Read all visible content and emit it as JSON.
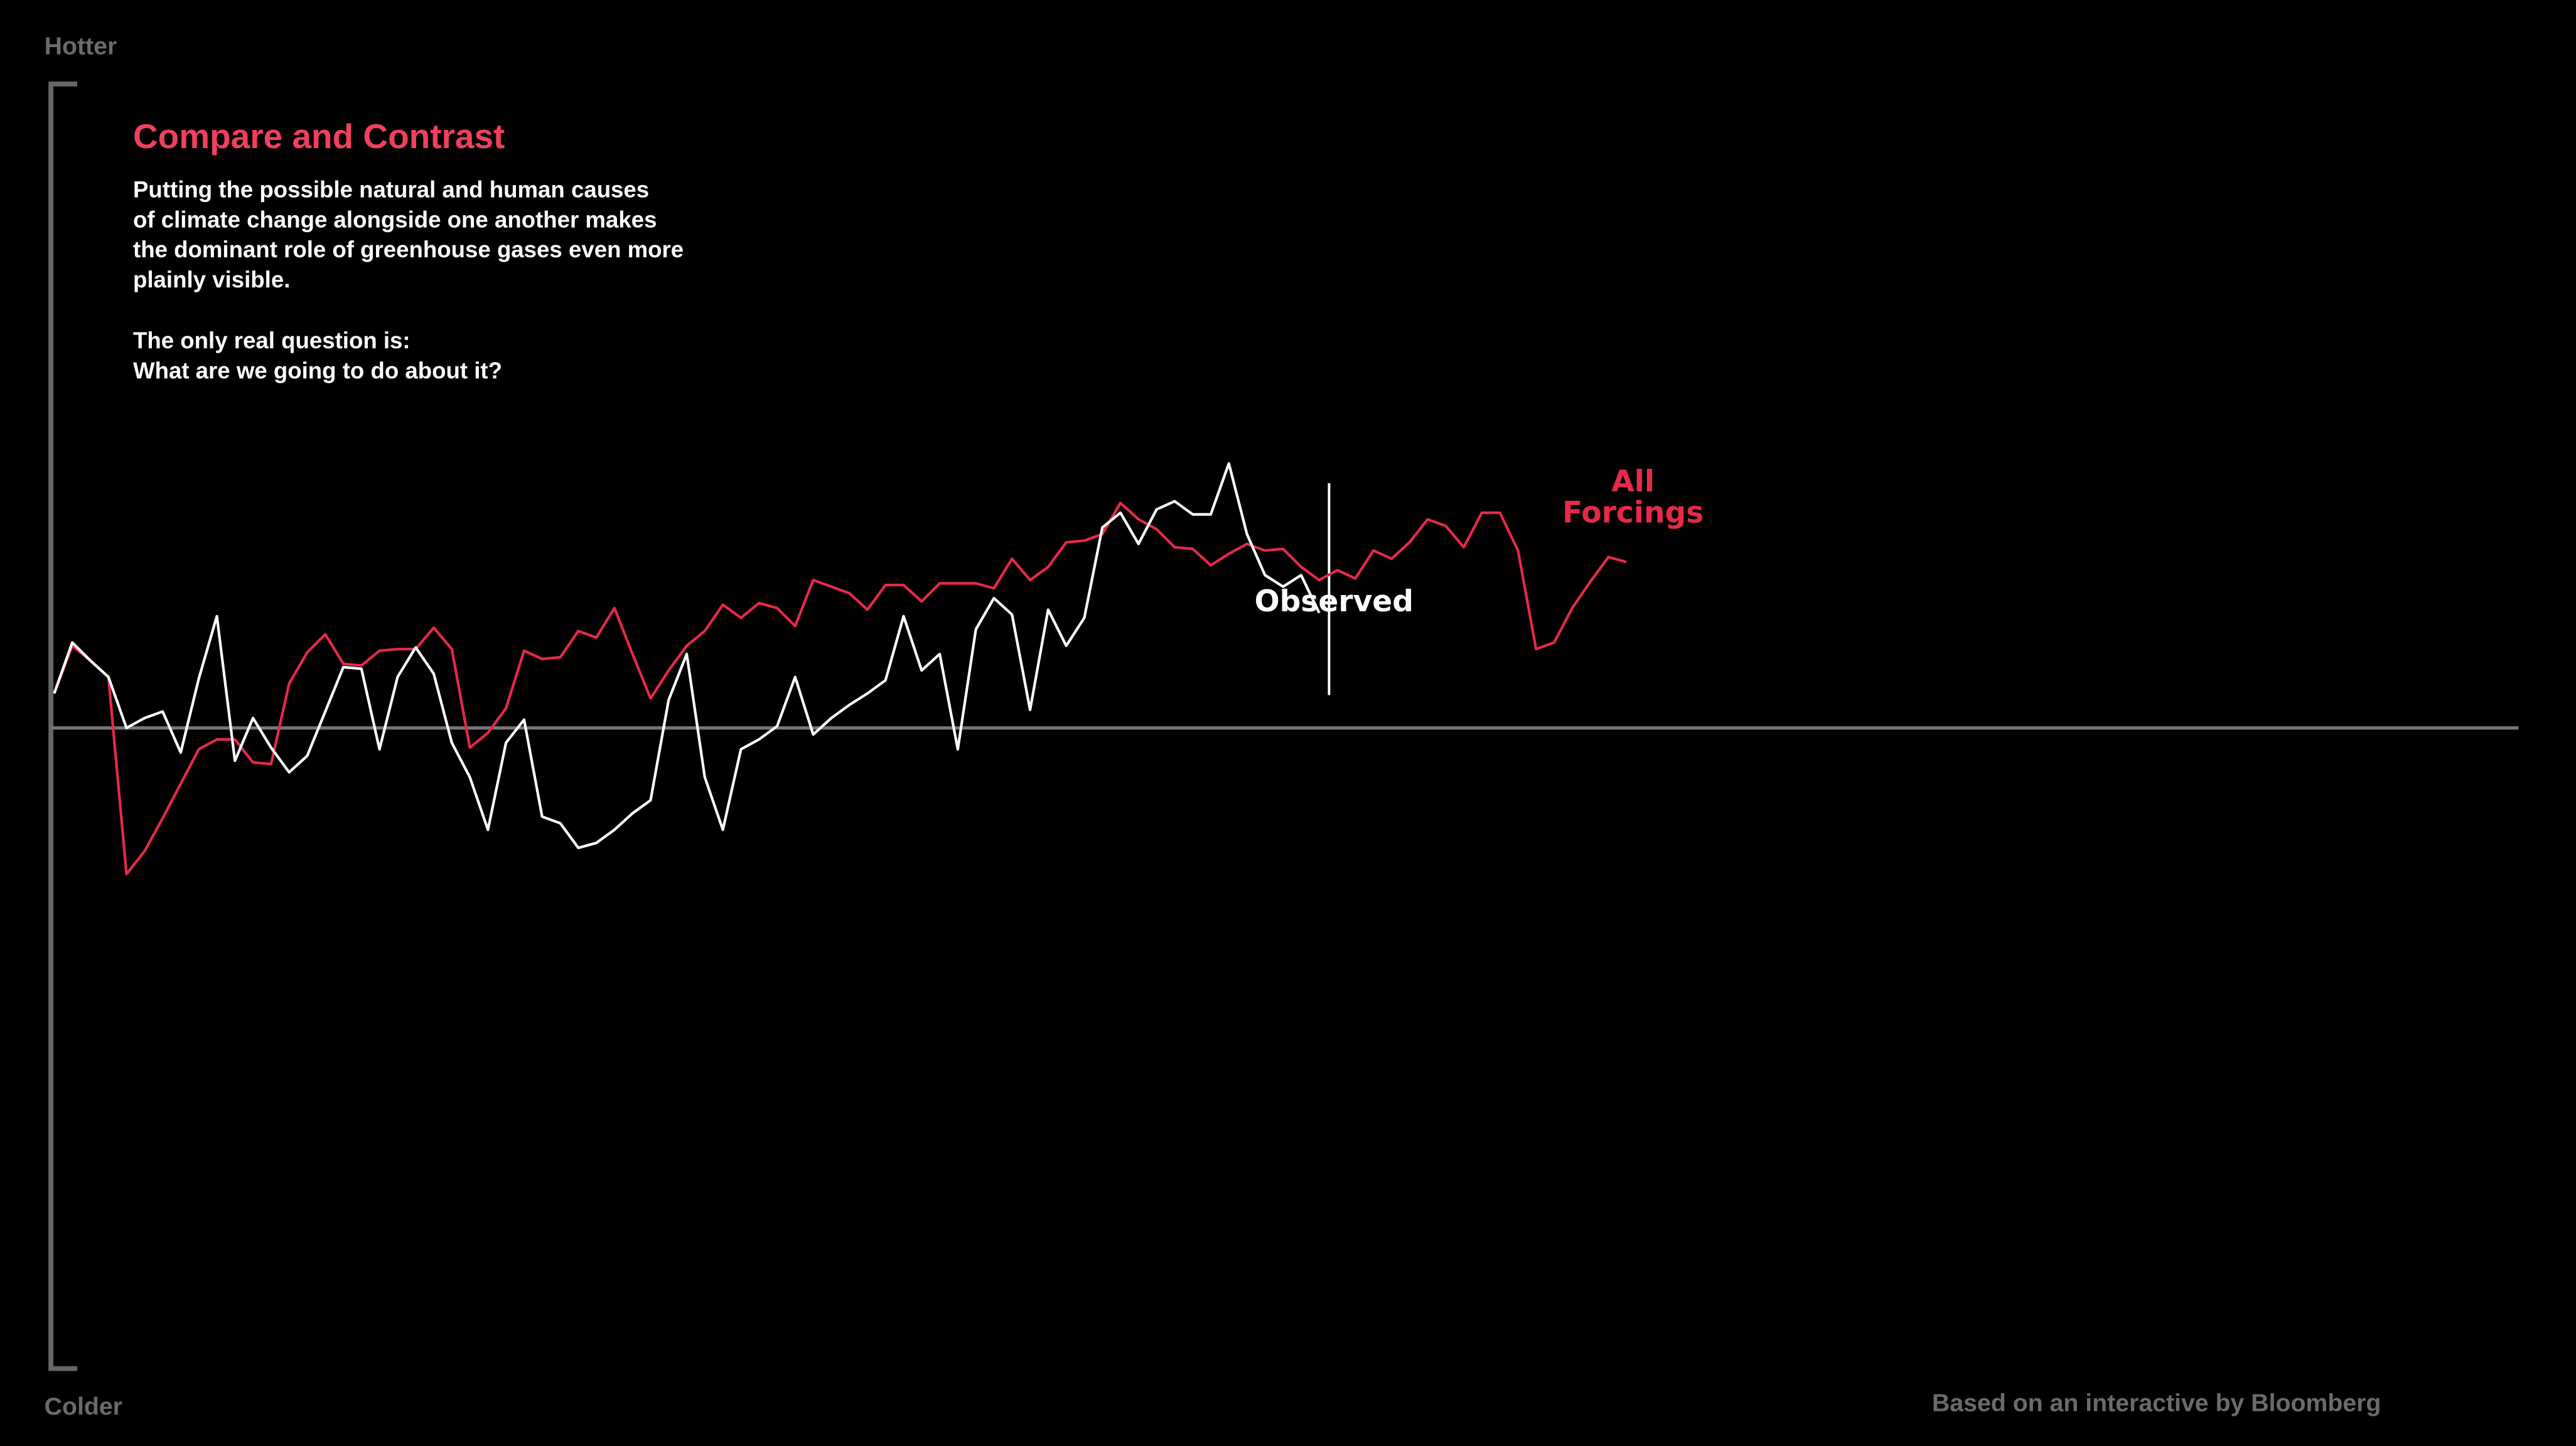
{
  "chart_data": {
    "type": "line",
    "title": "Compare and Contrast",
    "description": [
      "Putting the possible natural and human causes",
      "of climate change alongside one another makes",
      "the dominant role of greenhouse gases even more",
      "plainly visible."
    ],
    "question": [
      "The only real question is:",
      "What are we going to do about it?"
    ],
    "top_label": "Hotter",
    "bottom_label": "Colder",
    "credit": "Based on an interactive by Bloomberg",
    "ylim": [
      -390,
      393
    ],
    "series": [
      {
        "name": "All Forcings",
        "color": "#e8294a",
        "values": [
          21,
          50,
          41,
          31,
          -89,
          -75,
          -55,
          -34,
          -13,
          -7,
          -7,
          -21,
          -22,
          27,
          46,
          57,
          39,
          38,
          47,
          48,
          48,
          61,
          48,
          -12,
          -3,
          12,
          47,
          42,
          43,
          59,
          55,
          73,
          45,
          18,
          35,
          50,
          59,
          75,
          67,
          76,
          73,
          62,
          90,
          86,
          82,
          72,
          87,
          87,
          77,
          88,
          88,
          88,
          85,
          103,
          90,
          98,
          113,
          114,
          118,
          137,
          127,
          121,
          110,
          109,
          99,
          106,
          112,
          108,
          109,
          98,
          90,
          96,
          91,
          108,
          103,
          113,
          127,
          123,
          110,
          131,
          131,
          108,
          48,
          52,
          73,
          89,
          104,
          101
        ]
      },
      {
        "name": "Observed",
        "color": "#ffffff",
        "values": [
          21,
          52,
          41,
          31,
          0,
          6,
          10,
          -15,
          30,
          68,
          -20,
          6,
          -12,
          -27,
          -17,
          10,
          37,
          36,
          -13,
          31,
          49,
          33,
          -9,
          -30,
          -62,
          -9,
          5,
          -54,
          -58,
          -73,
          -70,
          -62,
          -52,
          -44,
          17,
          45,
          -30,
          -62,
          -13,
          -7,
          1,
          31,
          -4,
          6,
          14,
          21,
          29,
          68,
          35,
          45,
          -13,
          60,
          79,
          69,
          11,
          72,
          50,
          67,
          122,
          131,
          112,
          133,
          138,
          130,
          130,
          161,
          118,
          93,
          86,
          93,
          70,
          null,
          null,
          null,
          null,
          null,
          null,
          null,
          null,
          null,
          null,
          null,
          null,
          null,
          null,
          null,
          null,
          null
        ]
      }
    ]
  }
}
